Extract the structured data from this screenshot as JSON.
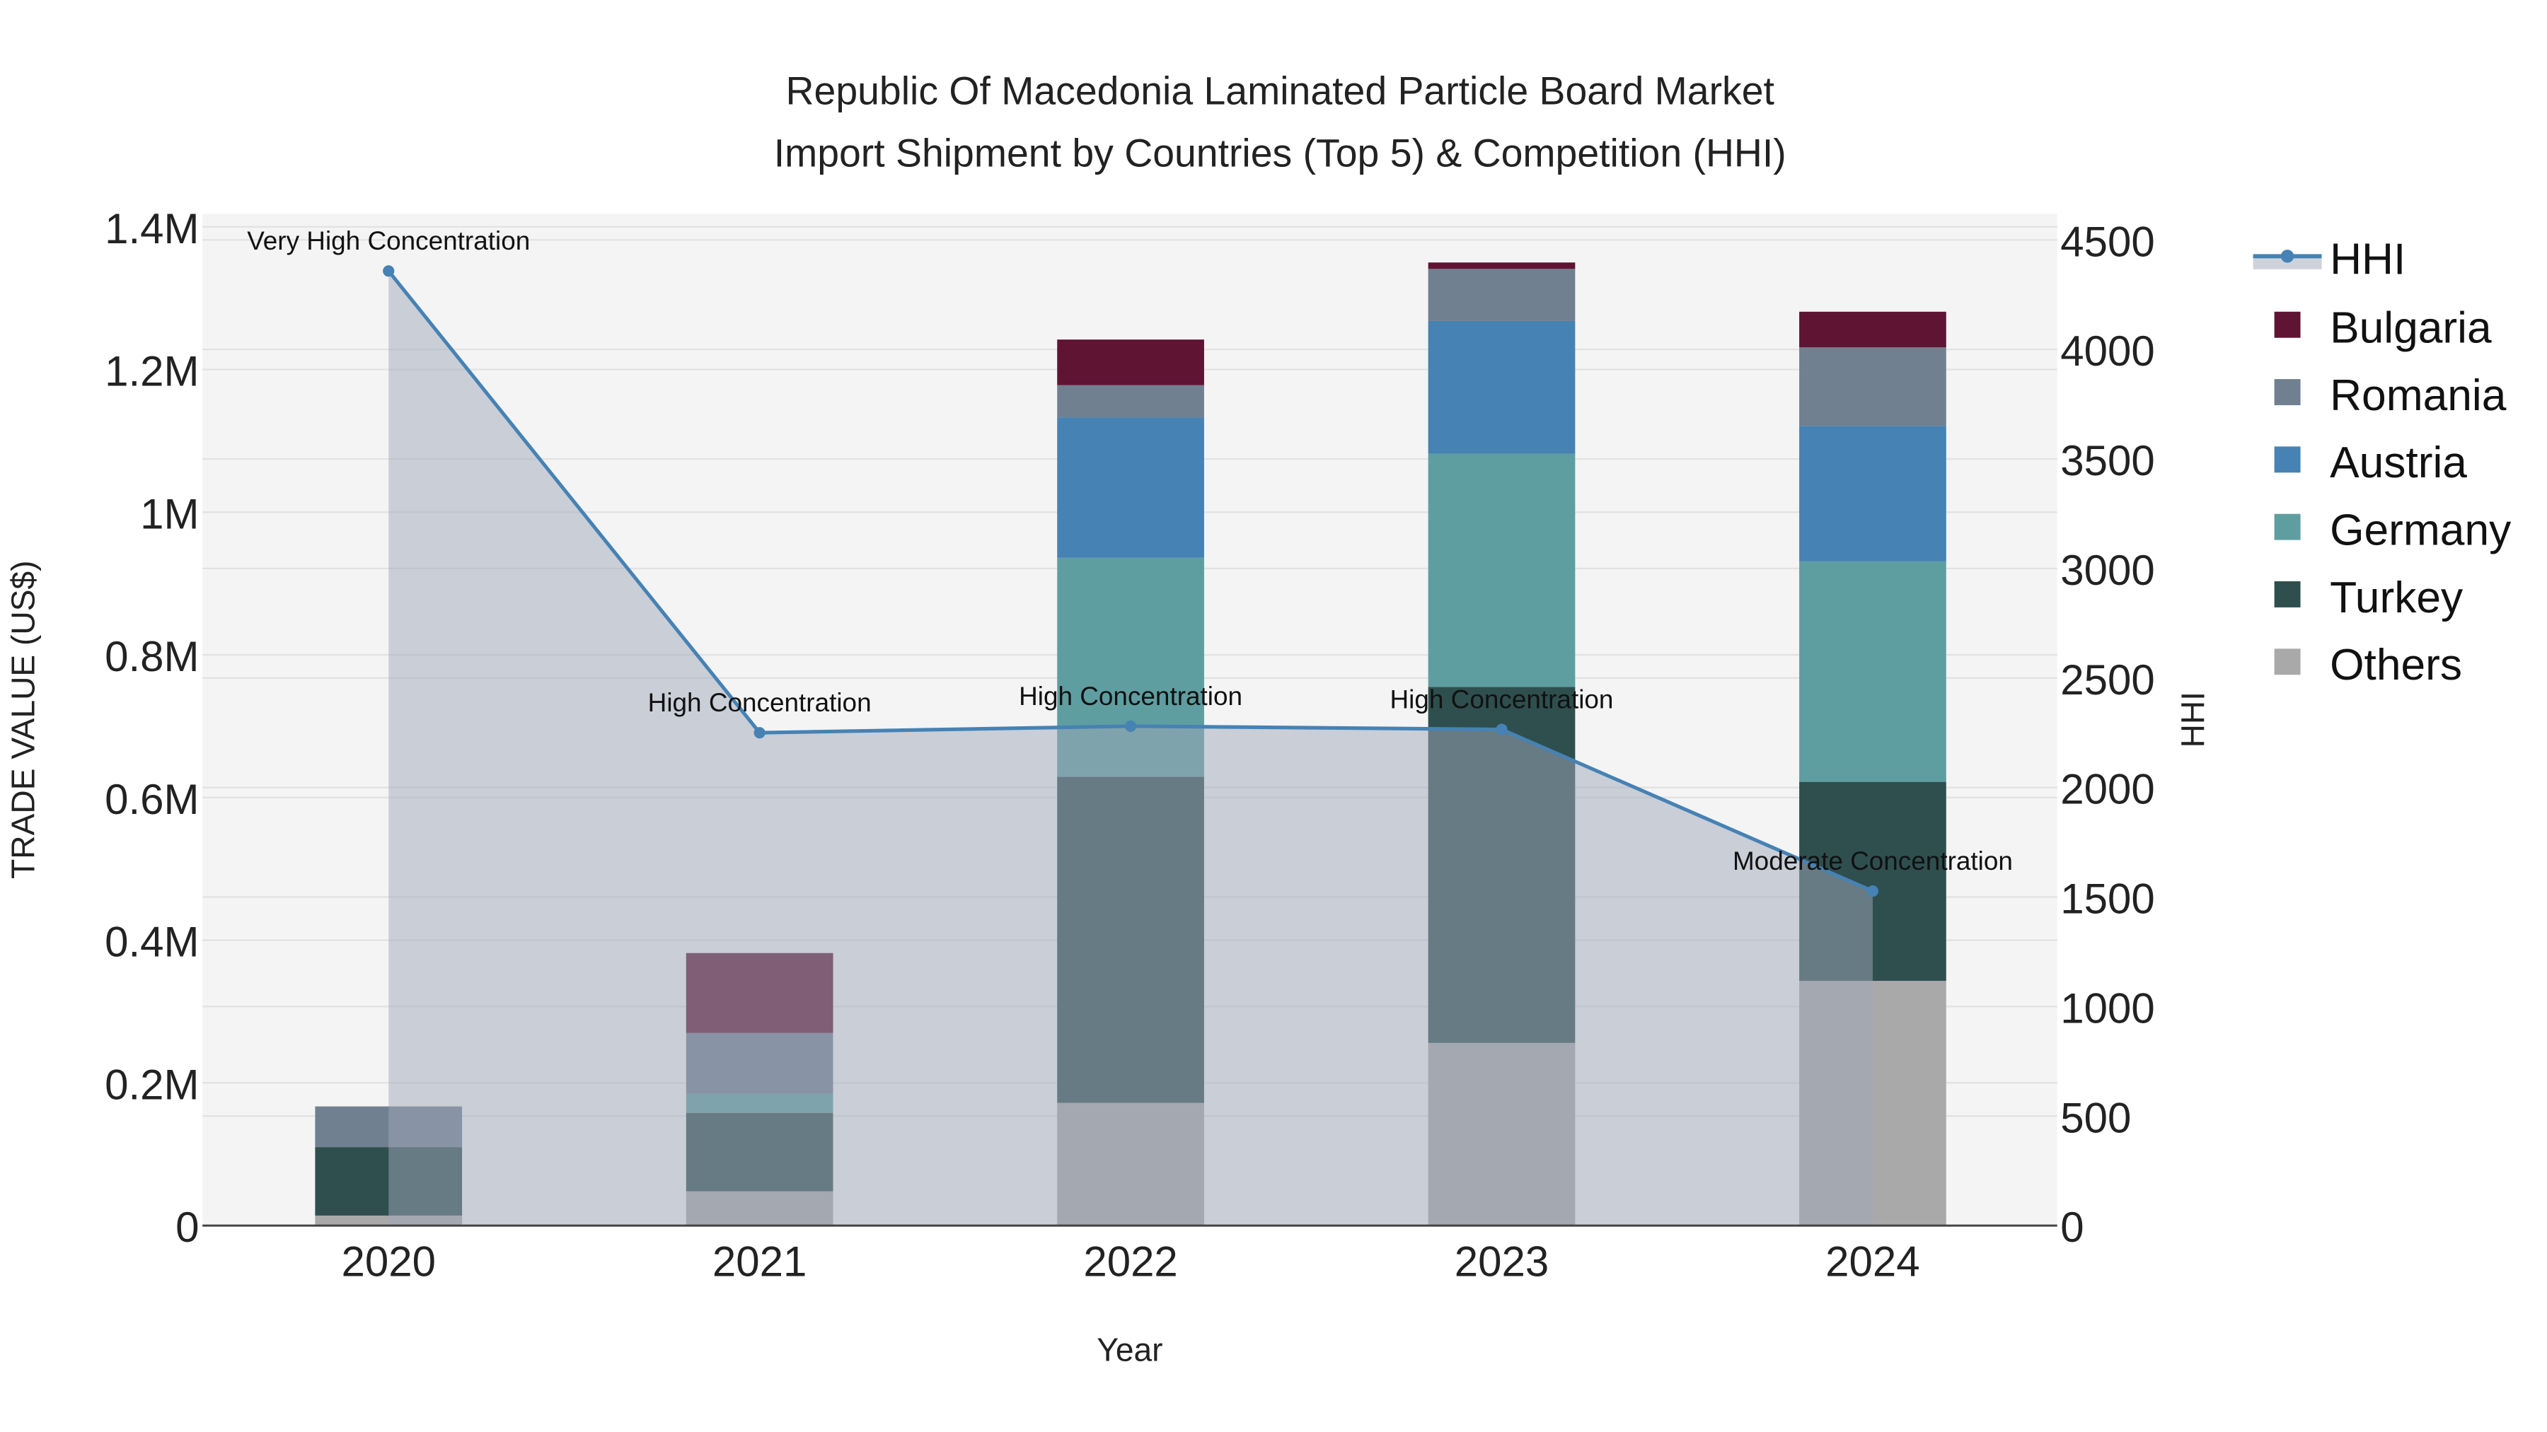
{
  "chart_data": {
    "type": "bar",
    "title_line1": "Republic Of Macedonia Laminated Particle Board Market",
    "title_line2": "Import Shipment by Countries (Top 5) & Competition (HHI)",
    "xlabel": "Year",
    "ylabel": "TRADE VALUE (US$)",
    "y2label": "HHI",
    "categories": [
      "2020",
      "2021",
      "2022",
      "2023",
      "2024"
    ],
    "ylim": [
      0,
      1420000
    ],
    "y2lim": [
      0,
      4620
    ],
    "yticks": [
      {
        "v": 0,
        "label": "0"
      },
      {
        "v": 200000,
        "label": "0.2M"
      },
      {
        "v": 400000,
        "label": "0.4M"
      },
      {
        "v": 600000,
        "label": "0.6M"
      },
      {
        "v": 800000,
        "label": "0.8M"
      },
      {
        "v": 1000000,
        "label": "1M"
      },
      {
        "v": 1200000,
        "label": "1.2M"
      },
      {
        "v": 1400000,
        "label": "1.4M"
      }
    ],
    "y2ticks": [
      {
        "v": 0,
        "label": "0"
      },
      {
        "v": 500,
        "label": "500"
      },
      {
        "v": 1000,
        "label": "1000"
      },
      {
        "v": 1500,
        "label": "1500"
      },
      {
        "v": 2000,
        "label": "2000"
      },
      {
        "v": 2500,
        "label": "2500"
      },
      {
        "v": 3000,
        "label": "3000"
      },
      {
        "v": 3500,
        "label": "3500"
      },
      {
        "v": 4000,
        "label": "4000"
      },
      {
        "v": 4500,
        "label": "4500"
      }
    ],
    "series": [
      {
        "name": "Others",
        "color": "#a9a9a9",
        "values": [
          14000,
          48000,
          172000,
          256000,
          343000
        ]
      },
      {
        "name": "Turkey",
        "color": "#2f4f4f",
        "values": [
          96000,
          110000,
          457000,
          499000,
          279000
        ]
      },
      {
        "name": "Germany",
        "color": "#5f9ea0",
        "values": [
          0,
          27000,
          307000,
          327000,
          309000
        ]
      },
      {
        "name": "Austria",
        "color": "#4682b4",
        "values": [
          0,
          0,
          197000,
          186000,
          190000
        ]
      },
      {
        "name": "Romania",
        "color": "#708090",
        "values": [
          57000,
          85000,
          45000,
          73000,
          110000
        ]
      },
      {
        "name": "Bulgaria",
        "color": "#5f1433",
        "values": [
          0,
          112000,
          64000,
          9000,
          50000
        ]
      }
    ],
    "hhi": {
      "name": "HHI",
      "color": "#4682b4",
      "values": [
        4358,
        2250,
        2280,
        2265,
        1527
      ],
      "annotations": [
        "Very High Concentration",
        "High Concentration",
        "High Concentration",
        "High Concentration",
        "Moderate Concentration"
      ]
    },
    "legend": [
      "HHI",
      "Bulgaria",
      "Romania",
      "Austria",
      "Germany",
      "Turkey",
      "Others"
    ],
    "legend_position": "right",
    "grid": true
  }
}
